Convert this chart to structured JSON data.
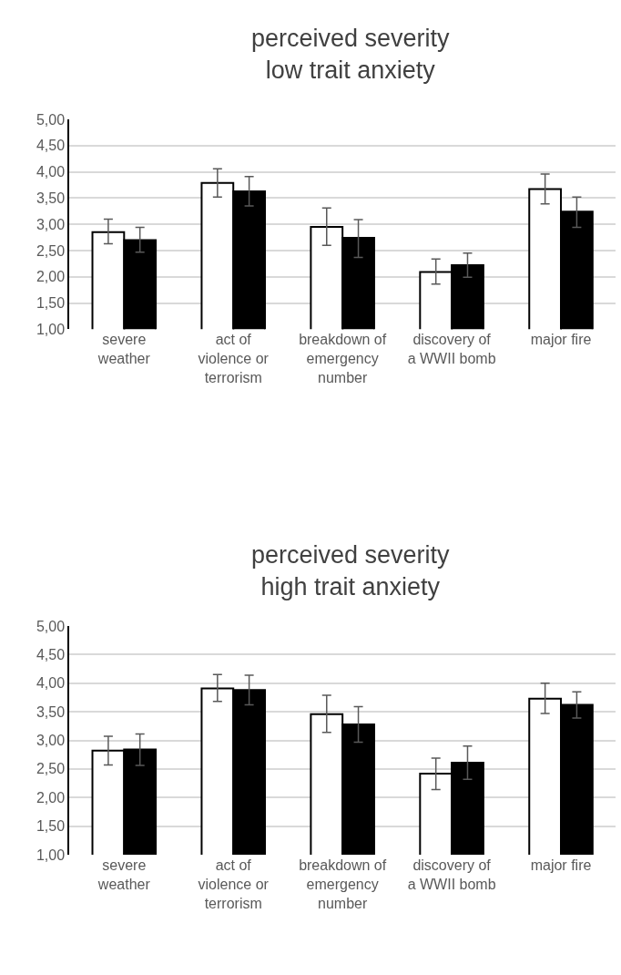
{
  "chart_data": [
    {
      "type": "bar",
      "title": "perceived severity\nlow trait anxiety",
      "categories": [
        "severe weather",
        "act of violence or terrorism",
        "breakdown of emergency number",
        "discovery of a WWII bomb",
        "major fire"
      ],
      "series": [
        {
          "color": "#ffffff",
          "values": [
            2.85,
            3.79,
            2.95,
            2.09,
            3.67
          ],
          "errors": [
            [
              2.63,
              3.1
            ],
            [
              3.52,
              4.06
            ],
            [
              2.6,
              3.31
            ],
            [
              1.86,
              2.34
            ],
            [
              3.39,
              3.96
            ]
          ]
        },
        {
          "color": "#000000",
          "values": [
            2.7,
            3.63,
            2.74,
            2.22,
            3.24
          ],
          "errors": [
            [
              2.47,
              2.94
            ],
            [
              3.35,
              3.91
            ],
            [
              2.37,
              3.09
            ],
            [
              1.99,
              2.45
            ],
            [
              2.94,
              3.52
            ]
          ]
        }
      ],
      "ylim": [
        1,
        5
      ],
      "yticks": [
        {
          "value": 1,
          "label": "1,00"
        },
        {
          "value": 1.5,
          "label": "1,50"
        },
        {
          "value": 2,
          "label": "2,00"
        },
        {
          "value": 2.5,
          "label": "2,50"
        },
        {
          "value": 3,
          "label": "3,00"
        },
        {
          "value": 3.5,
          "label": "3,50"
        },
        {
          "value": 4,
          "label": "4,00"
        },
        {
          "value": 4.5,
          "label": "4,50"
        },
        {
          "value": 5,
          "label": "5,00"
        }
      ],
      "grid": "y"
    },
    {
      "type": "bar",
      "title": "perceived severity\nhigh trait anxiety",
      "categories": [
        "severe weather",
        "act of violence or terrorism",
        "breakdown of emergency number",
        "discovery of a WWII bomb",
        "major fire"
      ],
      "series": [
        {
          "color": "#ffffff",
          "values": [
            2.82,
            3.91,
            3.46,
            2.42,
            3.73
          ],
          "errors": [
            [
              2.57,
              3.07
            ],
            [
              3.68,
              4.15
            ],
            [
              3.14,
              3.79
            ],
            [
              2.14,
              2.69
            ],
            [
              3.47,
              4.0
            ]
          ]
        },
        {
          "color": "#000000",
          "values": [
            2.84,
            3.88,
            3.28,
            2.61,
            3.62
          ],
          "errors": [
            [
              2.56,
              3.11
            ],
            [
              3.62,
              4.14
            ],
            [
              2.97,
              3.59
            ],
            [
              2.32,
              2.9
            ],
            [
              3.39,
              3.85
            ]
          ]
        }
      ],
      "ylim": [
        1,
        5
      ],
      "yticks": [
        {
          "value": 1,
          "label": "1,00"
        },
        {
          "value": 1.5,
          "label": "1,50"
        },
        {
          "value": 2,
          "label": "2,00"
        },
        {
          "value": 2.5,
          "label": "2,50"
        },
        {
          "value": 3,
          "label": "3,00"
        },
        {
          "value": 3.5,
          "label": "3,50"
        },
        {
          "value": 4,
          "label": "4,00"
        },
        {
          "value": 4.5,
          "label": "4,50"
        },
        {
          "value": 5,
          "label": "5,00"
        }
      ],
      "grid": "y"
    }
  ]
}
